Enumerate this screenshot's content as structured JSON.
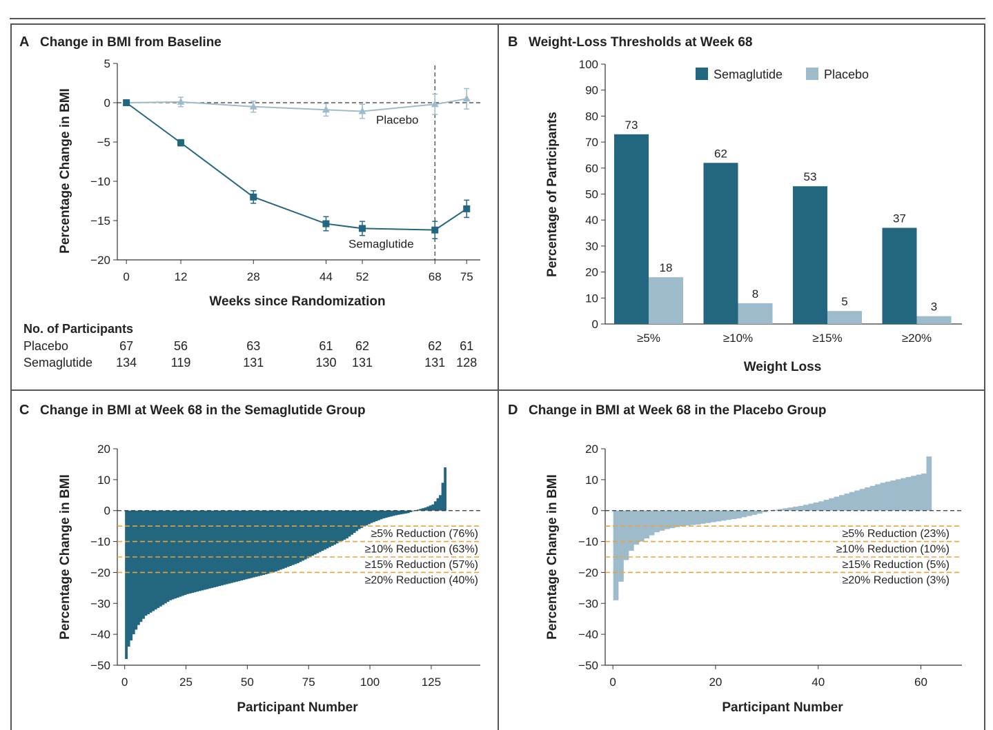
{
  "colors": {
    "semaglutide": "#226680",
    "placebo": "#9dbbcb",
    "threshold": "#e8a43b",
    "frame": "#555555",
    "text": "#222222"
  },
  "panels": {
    "A": {
      "letter": "A",
      "title": "Change in BMI from Baseline"
    },
    "B": {
      "letter": "B",
      "title": "Weight-Loss Thresholds at Week 68"
    },
    "C": {
      "letter": "C",
      "title": "Change in BMI at Week 68 in the Semaglutide Group"
    },
    "D": {
      "letter": "D",
      "title": "Change in BMI at Week 68 in the Placebo Group"
    }
  },
  "participants_table": {
    "heading": "No. of Participants",
    "rows": [
      {
        "label": "Placebo",
        "counts": [
          67,
          56,
          63,
          61,
          62,
          62,
          61
        ]
      },
      {
        "label": "Semaglutide",
        "counts": [
          134,
          119,
          131,
          130,
          131,
          131,
          128
        ]
      }
    ]
  },
  "chart_data": [
    {
      "panel": "A",
      "type": "line",
      "xlabel": "Weeks since Randomization",
      "ylabel": "Percentage Change in BMI",
      "x": [
        0,
        12,
        28,
        44,
        52,
        68,
        75
      ],
      "xlim": [
        -2,
        78
      ],
      "ylim": [
        -20,
        5
      ],
      "yticks": [
        5,
        0,
        -5,
        -10,
        -15,
        -20
      ],
      "reference_line_y": 0,
      "vertical_marker_x": 68,
      "series": [
        {
          "name": "Placebo",
          "marker": "triangle",
          "values": [
            0,
            0.1,
            -0.5,
            -0.9,
            -1.1,
            -0.2,
            0.5
          ],
          "error": [
            0.2,
            0.6,
            0.7,
            0.8,
            0.9,
            1.3,
            1.3
          ]
        },
        {
          "name": "Semaglutide",
          "marker": "square",
          "values": [
            0,
            -5.1,
            -12.0,
            -15.4,
            -16.0,
            -16.2,
            -13.5
          ],
          "error": [
            0.2,
            0.4,
            0.8,
            0.9,
            0.9,
            1.1,
            1.1
          ]
        }
      ]
    },
    {
      "panel": "B",
      "type": "bar",
      "xlabel": "Weight Loss",
      "ylabel": "Percentage of Participants",
      "categories": [
        "≥5%",
        "≥10%",
        "≥15%",
        "≥20%"
      ],
      "ylim": [
        0,
        100
      ],
      "yticks": [
        0,
        10,
        20,
        30,
        40,
        50,
        60,
        70,
        80,
        90,
        100
      ],
      "legend_position": "top-right",
      "series": [
        {
          "name": "Semaglutide",
          "values": [
            73,
            62,
            53,
            37
          ]
        },
        {
          "name": "Placebo",
          "values": [
            18,
            8,
            5,
            3
          ]
        }
      ]
    },
    {
      "panel": "C",
      "type": "bar",
      "xlabel": "Participant Number",
      "ylabel": "Percentage Change in BMI",
      "xlim": [
        -3,
        145
      ],
      "xticks": [
        0,
        25,
        50,
        75,
        100,
        125
      ],
      "ylim": [
        -50,
        20
      ],
      "yticks": [
        20,
        10,
        0,
        -10,
        -20,
        -30,
        -40,
        -50
      ],
      "n_participants": 131,
      "sorted_waterfall": true,
      "profile": {
        "x": [
          0,
          1,
          2,
          3,
          5,
          8,
          12,
          18,
          25,
          35,
          45,
          50,
          60,
          70,
          75,
          80,
          85,
          90,
          95,
          100,
          105,
          110,
          115,
          118,
          122,
          125,
          126,
          127,
          128,
          129,
          130
        ],
        "y": [
          -48,
          -44,
          -42,
          -40,
          -37,
          -34,
          -32,
          -29,
          -27,
          -25,
          -23,
          -22,
          -20,
          -17,
          -15,
          -13,
          -11,
          -9,
          -6,
          -4,
          -2.5,
          -1.5,
          -0.8,
          0.1,
          1,
          2,
          3,
          4,
          5,
          9,
          14
        ]
      },
      "thresholds": [
        {
          "y": -5,
          "label": "≥5% Reduction (76%)"
        },
        {
          "y": -10,
          "label": "≥10% Reduction (63%)"
        },
        {
          "y": -15,
          "label": "≥15% Reduction (57%)"
        },
        {
          "y": -20,
          "label": "≥20% Reduction (40%)"
        }
      ]
    },
    {
      "panel": "D",
      "type": "bar",
      "xlabel": "Participant Number",
      "ylabel": "Percentage Change in BMI",
      "xlim": [
        -1.5,
        68
      ],
      "xticks": [
        0,
        20,
        40,
        60
      ],
      "ylim": [
        -50,
        20
      ],
      "yticks": [
        20,
        10,
        0,
        -10,
        -20,
        -30,
        -40,
        -50
      ],
      "n_participants": 62,
      "sorted_waterfall": true,
      "profile": {
        "x": [
          0,
          1,
          2,
          3,
          4,
          6,
          8,
          10,
          13,
          16,
          20,
          24,
          28,
          30,
          32,
          36,
          40,
          44,
          48,
          52,
          56,
          60,
          61
        ],
        "y": [
          -29,
          -23,
          -16,
          -13,
          -11,
          -9,
          -7,
          -6,
          -5,
          -4.5,
          -3.5,
          -2.5,
          -1,
          0,
          0.5,
          1.5,
          3,
          5,
          7,
          9,
          10.5,
          12,
          17.5
        ]
      },
      "thresholds": [
        {
          "y": -5,
          "label": "≥5% Reduction (23%)"
        },
        {
          "y": -10,
          "label": "≥10% Reduction (10%)"
        },
        {
          "y": -15,
          "label": "≥15% Reduction (5%)"
        },
        {
          "y": -20,
          "label": "≥20% Reduction (3%)"
        }
      ]
    }
  ]
}
